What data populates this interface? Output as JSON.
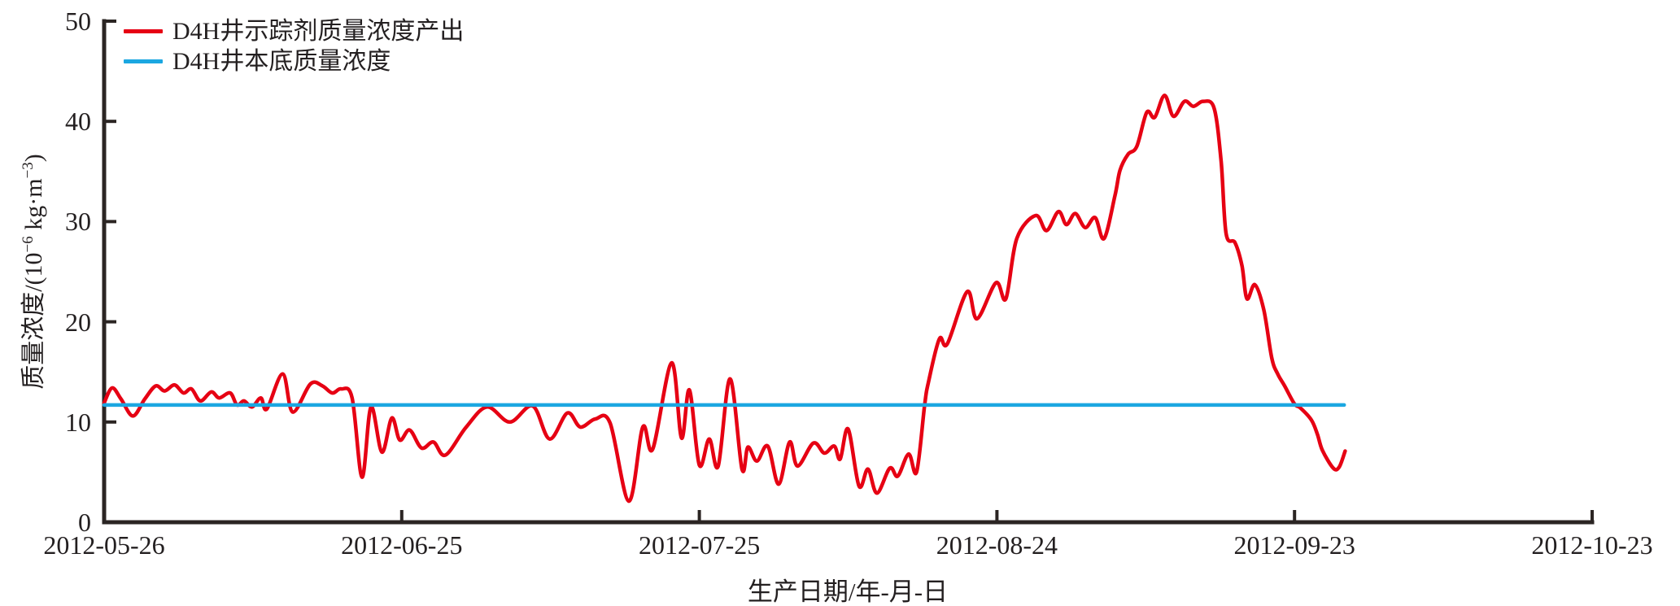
{
  "figure": {
    "background": "#ffffff",
    "axis_color": "#2b2523",
    "text_color": "#231f20"
  },
  "legend": {
    "position": "top-left",
    "items": [
      {
        "label": "D4H井示踪剂质量浓度产出",
        "color": "#e60013"
      },
      {
        "label": "D4H井本底质量浓度",
        "color": "#1ba7e1"
      }
    ]
  },
  "axes": {
    "x_title": "生产日期/年-月-日",
    "y_title": "质量浓度/(10⁻⁶ kg·m⁻³)",
    "y_title_parts": {
      "prefix": "质量浓度/(10",
      "sup1": "−6",
      "mid": " kg·m",
      "sup2": "−3",
      "suffix": ")"
    }
  },
  "chart_data": {
    "type": "line",
    "title": "",
    "xlabel": "生产日期/年-月-日",
    "ylabel": "质量浓度/(10⁻⁶ kg·m⁻³)",
    "grid": false,
    "legend_position": "top-left",
    "ylim": [
      0,
      50
    ],
    "y_ticks": [
      0,
      10,
      20,
      30,
      40,
      50
    ],
    "x_unit": "days since 2012-05-26",
    "xlim_days": [
      0,
      150
    ],
    "x_tick_days": [
      0,
      30,
      60,
      90,
      120,
      150
    ],
    "x_tick_labels": [
      "2012-05-26",
      "2012-06-25",
      "2012-07-25",
      "2012-08-24",
      "2012-09-23",
      "2012-10-23"
    ],
    "series": [
      {
        "name": "D4H井示踪剂质量浓度产出",
        "color": "#e60013",
        "x": [
          0,
          0.8,
          1.7,
          2.9,
          4.1,
          5.2,
          6.1,
          7.1,
          8,
          8.8,
          9.7,
          10.8,
          11.6,
          12.7,
          13.4,
          14.1,
          14.9,
          15.8,
          16.4,
          18,
          19,
          20.8,
          22,
          23,
          23.9,
          25,
          26,
          26.9,
          28,
          29,
          29.8,
          30.8,
          32,
          33.2,
          34.4,
          36.5,
          38.6,
          40.9,
          43.2,
          44.9,
          46.7,
          48,
          49.5,
          51,
          52.9,
          54.3,
          55.3,
          57.2,
          58.2,
          59,
          60,
          61,
          61.9,
          63.1,
          64.3,
          64.9,
          65.8,
          66.9,
          68,
          69.1,
          69.9,
          71.5,
          72.6,
          73.6,
          74.2,
          75,
          76.1,
          77,
          77.9,
          79.2,
          80,
          81.1,
          81.9,
          82.7,
          83.1,
          84.2,
          85,
          87,
          88,
          89.9,
          90.9,
          92,
          93.9,
          95,
          96.2,
          97,
          97.9,
          98.9,
          99.9,
          100.8,
          101.9,
          102.4,
          103.2,
          104.1,
          105.1,
          105.9,
          106.9,
          107.8,
          108.9,
          109.8,
          110.8,
          111.9,
          112.6,
          113.1,
          114,
          114.7,
          115.2,
          116,
          116.9,
          117.7,
          118.3,
          119,
          120,
          120.6,
          121.7,
          122.3,
          122.8,
          123.9,
          124.5,
          125.1
        ],
        "y": [
          11.9,
          13.4,
          12.3,
          10.6,
          12.3,
          13.6,
          13.1,
          13.7,
          12.9,
          13.3,
          12.1,
          13.0,
          12.4,
          12.9,
          11.7,
          12.1,
          11.5,
          12.4,
          11.3,
          14.8,
          11.0,
          13.8,
          13.6,
          12.9,
          13.3,
          12.4,
          4.5,
          11.5,
          7.0,
          10.4,
          8.2,
          9.2,
          7.4,
          8.0,
          6.7,
          9.5,
          11.5,
          10.0,
          11.6,
          8.3,
          10.9,
          9.5,
          10.3,
          9.9,
          2.1,
          9.5,
          7.3,
          15.9,
          8.4,
          13.2,
          5.7,
          8.3,
          5.6,
          14.3,
          5.3,
          7.5,
          6.1,
          7.6,
          3.8,
          8.0,
          5.6,
          7.9,
          6.9,
          7.6,
          6.3,
          9.3,
          3.6,
          5.3,
          2.9,
          5.4,
          4.6,
          6.8,
          5.0,
          11.6,
          14.0,
          18.3,
          17.8,
          23.0,
          20.3,
          23.9,
          22.3,
          28.3,
          30.6,
          29.1,
          31.0,
          29.7,
          30.8,
          29.4,
          30.4,
          28.3,
          32.6,
          35.1,
          36.7,
          37.5,
          40.9,
          40.4,
          42.6,
          40.5,
          42.0,
          41.5,
          42.0,
          41.3,
          36.0,
          28.8,
          27.9,
          25.6,
          22.3,
          23.7,
          21.2,
          16.4,
          14.8,
          13.6,
          11.8,
          11.4,
          10.2,
          8.8,
          7.2,
          5.4,
          5.5,
          7.1
        ]
      },
      {
        "name": "D4H井本底质量浓度",
        "color": "#1ba7e1",
        "x": [
          0,
          125
        ],
        "y": [
          11.7,
          11.7
        ]
      }
    ]
  }
}
